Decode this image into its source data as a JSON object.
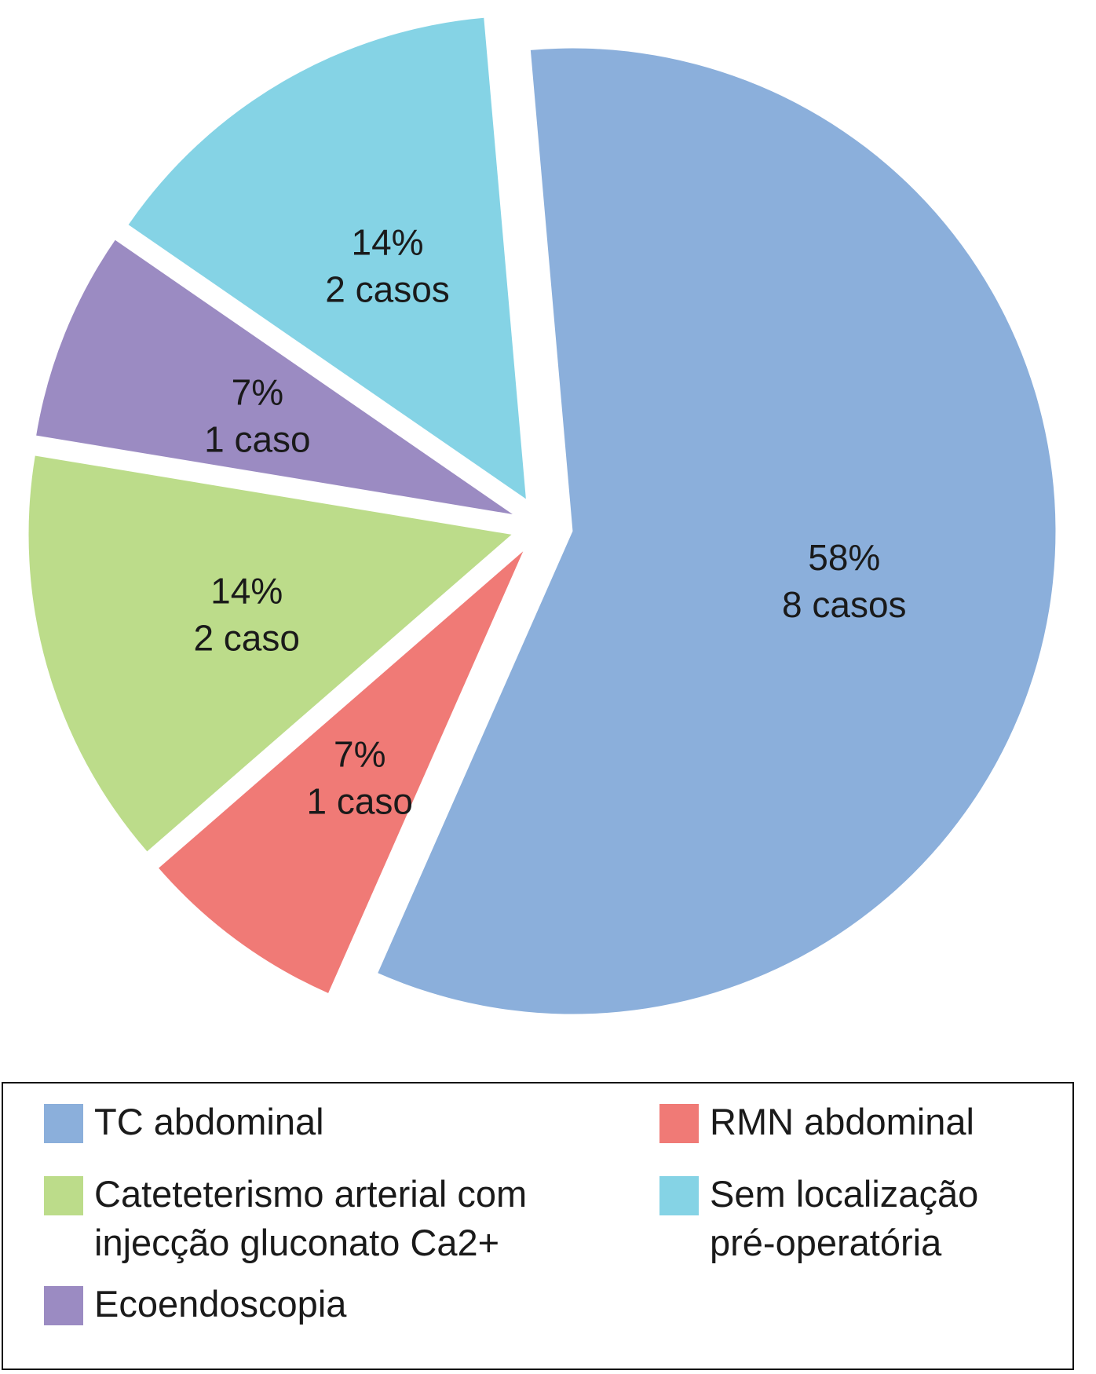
{
  "chart_data": {
    "type": "pie",
    "title": "",
    "slices": [
      {
        "name": "TC abdominal",
        "value": 58,
        "label_pct": "58%",
        "label_count": "8 casos",
        "color": "#8bafdb"
      },
      {
        "name": "RMN abdominal",
        "value": 7,
        "label_pct": "7%",
        "label_count": "1 caso",
        "color": "#f07a76"
      },
      {
        "name": "Catetererismo arterial com injecção gluconato Ca2+",
        "value": 14,
        "label_pct": "14%",
        "label_count": "2 caso",
        "color": "#bcdc8a"
      },
      {
        "name": "Ecoendoscopia",
        "value": 7,
        "label_pct": "7%",
        "label_count": "1 caso",
        "color": "#9b8bc2"
      },
      {
        "name": "Sem localização pré-operatória",
        "value": 14,
        "label_pct": "14%",
        "label_count": "2 casos",
        "color": "#85d3e5"
      }
    ],
    "legend": {
      "position": "bottom",
      "items": [
        {
          "lines": [
            "TC abdominal"
          ],
          "color": "#8bafdb"
        },
        {
          "lines": [
            "RMN abdominal"
          ],
          "color": "#f07a76"
        },
        {
          "lines": [
            "Cateteterismo arterial com",
            "injecção gluconato Ca2+"
          ],
          "color": "#bcdc8a"
        },
        {
          "lines": [
            "Sem localização",
            "pré-operatória"
          ],
          "color": "#85d3e5"
        },
        {
          "lines": [
            "Ecoendoscopia"
          ],
          "color": "#9b8bc2"
        }
      ]
    }
  }
}
